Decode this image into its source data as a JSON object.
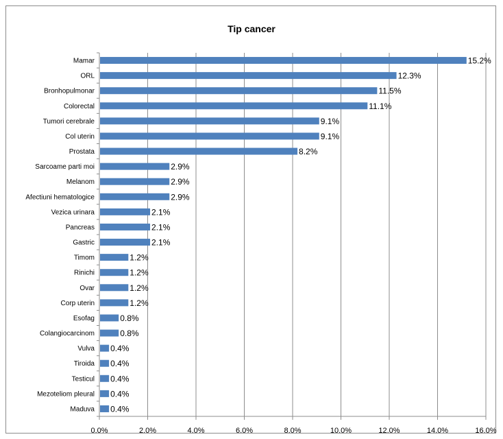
{
  "chart_data": {
    "type": "bar",
    "orientation": "horizontal",
    "title": "Tip cancer",
    "xlabel": "",
    "ylabel": "",
    "xlim": [
      0,
      16
    ],
    "x_ticks": [
      "0.0%",
      "2.0%",
      "4.0%",
      "6.0%",
      "8.0%",
      "10.0%",
      "12.0%",
      "14.0%",
      "16.0%"
    ],
    "grid": "vertical",
    "legend": "none",
    "bar_color": "#4f81bd",
    "categories": [
      "Mamar",
      "ORL",
      "Bronhopulmonar",
      "Colorectal",
      "Tumori cerebrale",
      "Col uterin",
      "Prostata",
      "Sarcoame parti moi",
      "Melanom",
      "Afectiuni hematologice",
      "Vezica urinara",
      "Pancreas",
      "Gastric",
      "Timom",
      "Rinichi",
      "Ovar",
      "Corp uterin",
      "Esofag",
      "Colangiocarcinom",
      "Vulva",
      "Tiroida",
      "Testicul",
      "Mezoteliom pleural",
      "Maduva"
    ],
    "values": [
      15.2,
      12.3,
      11.5,
      11.1,
      9.1,
      9.1,
      8.2,
      2.9,
      2.9,
      2.9,
      2.1,
      2.1,
      2.1,
      1.2,
      1.2,
      1.2,
      1.2,
      0.8,
      0.8,
      0.4,
      0.4,
      0.4,
      0.4,
      0.4
    ],
    "value_labels": [
      "15.2%",
      "12.3%",
      "11.5%",
      "11.1%",
      "9.1%",
      "9.1%",
      "8.2%",
      "2.9%",
      "2.9%",
      "2.9%",
      "2.1%",
      "2.1%",
      "2.1%",
      "1.2%",
      "1.2%",
      "1.2%",
      "1.2%",
      "0.8%",
      "0.8%",
      "0.4%",
      "0.4%",
      "0.4%",
      "0.4%",
      "0.4%"
    ]
  }
}
